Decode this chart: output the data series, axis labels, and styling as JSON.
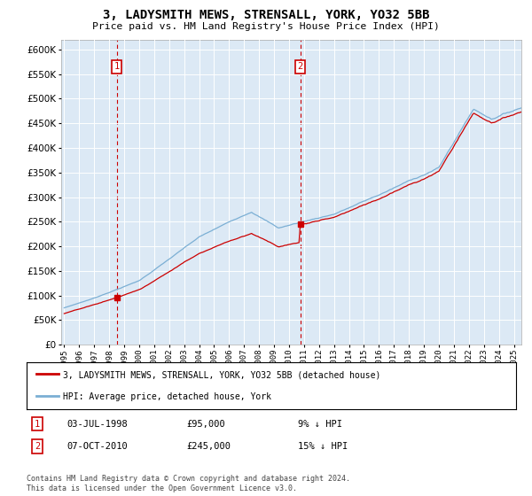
{
  "title": "3, LADYSMITH MEWS, STRENSALL, YORK, YO32 5BB",
  "subtitle": "Price paid vs. HM Land Registry's House Price Index (HPI)",
  "legend_label_red": "3, LADYSMITH MEWS, STRENSALL, YORK, YO32 5BB (detached house)",
  "legend_label_blue": "HPI: Average price, detached house, York",
  "annotation1": {
    "label": "1",
    "date": "03-JUL-1998",
    "price": "£95,000",
    "hpi": "9% ↓ HPI",
    "year": 1998.5
  },
  "annotation2": {
    "label": "2",
    "date": "07-OCT-2010",
    "price": "£245,000",
    "hpi": "15% ↓ HPI",
    "year": 2010.75
  },
  "sale1_value": 95000,
  "sale2_value": 245000,
  "footer": "Contains HM Land Registry data © Crown copyright and database right 2024.\nThis data is licensed under the Open Government Licence v3.0.",
  "ylim": [
    0,
    620000
  ],
  "yticks": [
    0,
    50000,
    100000,
    150000,
    200000,
    250000,
    300000,
    350000,
    400000,
    450000,
    500000,
    550000,
    600000
  ],
  "xlim_start": 1994.8,
  "xlim_end": 2025.5,
  "background_color": "#dce9f5",
  "red_color": "#cc0000",
  "blue_color": "#7bafd4",
  "grid_color": "#ffffff"
}
